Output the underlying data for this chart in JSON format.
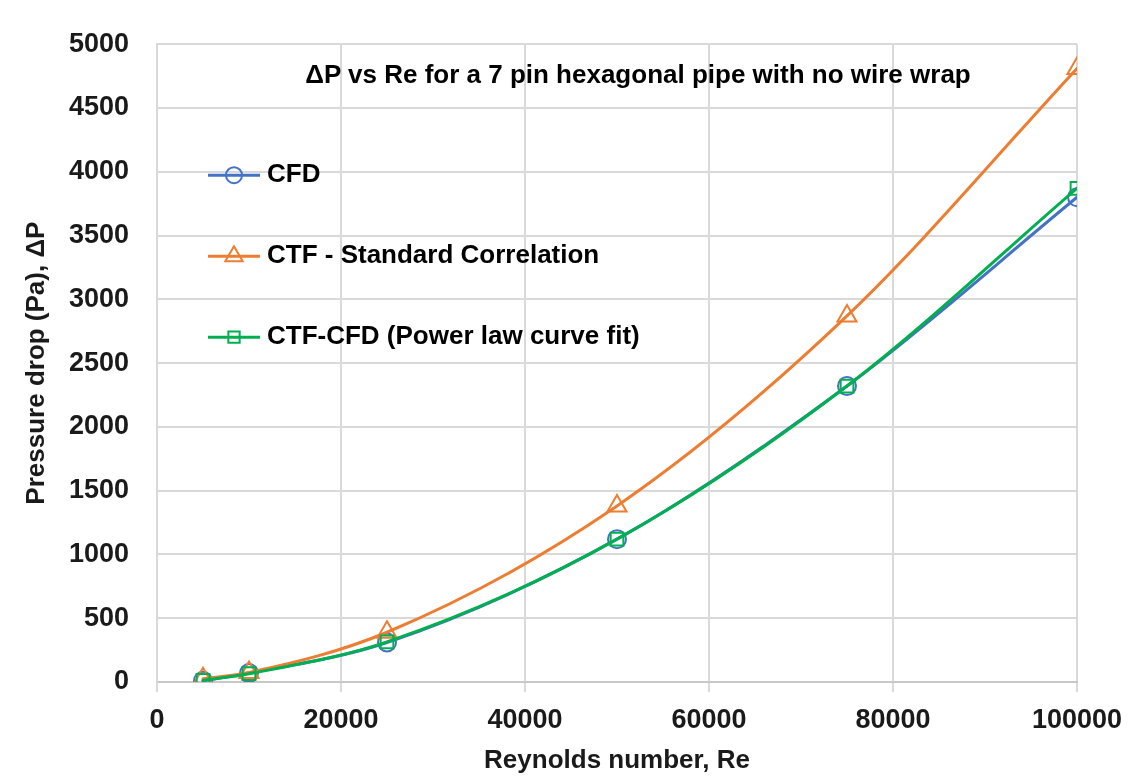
{
  "chart_data": {
    "type": "line",
    "title": "ΔP vs Re for a 7 pin hexagonal pipe with no wire wrap",
    "xlabel": "Reynolds number, Re",
    "ylabel": "Pressure drop (Pa), ΔP",
    "x": [
      5000,
      10000,
      25000,
      50000,
      75000,
      100000
    ],
    "series": [
      {
        "name": "CFD",
        "color": "#4472c4",
        "marker": "circle",
        "values": [
          10,
          70,
          310,
          1120,
          2320,
          3800
        ]
      },
      {
        "name": "CTF - Standard Correlation",
        "color": "#ed7d31",
        "marker": "triangle",
        "values": [
          25,
          75,
          390,
          1380,
          2870,
          4810
        ]
      },
      {
        "name": "CTF-CFD (Power law curve fit)",
        "color": "#00b050",
        "marker": "square",
        "values": [
          12,
          65,
          315,
          1120,
          2320,
          3870
        ]
      }
    ],
    "xlim": [
      0,
      100000
    ],
    "xticks": [
      0,
      20000,
      40000,
      60000,
      80000,
      100000
    ],
    "ylim": [
      0,
      5000
    ],
    "yticks": [
      0,
      500,
      1000,
      1500,
      2000,
      2500,
      3000,
      3500,
      4000,
      4500,
      5000
    ],
    "grid": true,
    "legend": "top left",
    "line_style": "solid"
  }
}
